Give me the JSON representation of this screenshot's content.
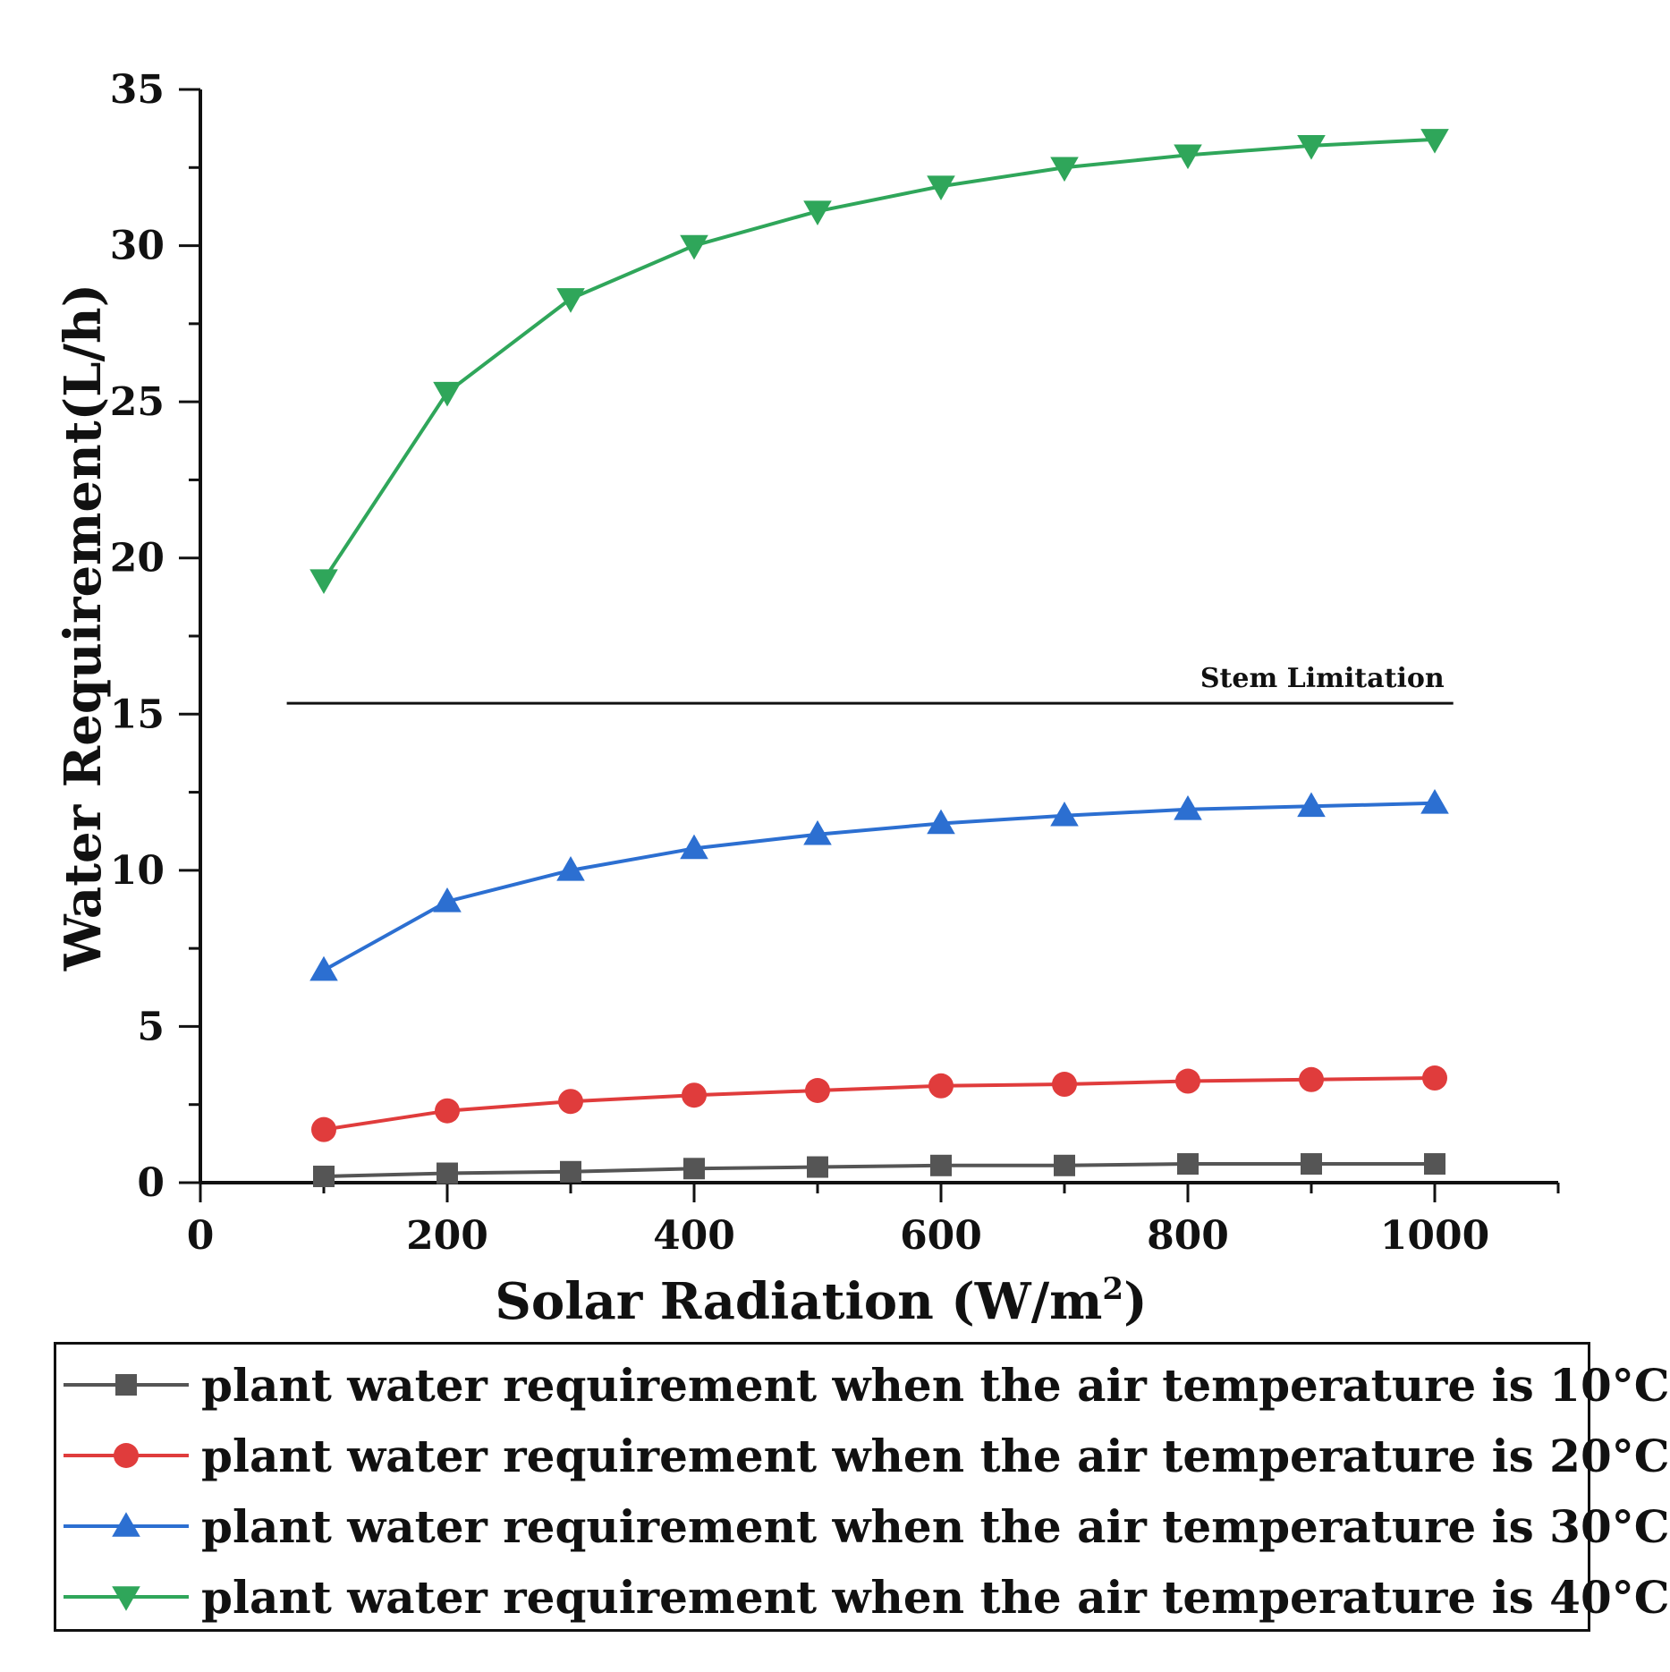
{
  "chart_data": {
    "type": "line",
    "title": "",
    "xlabel": "Solar Radiation (W/m",
    "xlabel_sup": "2",
    "xlabel_tail": ")",
    "ylabel": "Water Requirement(L/h)",
    "xlim": [
      0,
      1100
    ],
    "ylim": [
      0,
      35
    ],
    "xticks": [
      0,
      200,
      400,
      600,
      800,
      1000
    ],
    "yticks": [
      0,
      5,
      10,
      15,
      20,
      25,
      30,
      35
    ],
    "x": [
      100,
      200,
      300,
      400,
      500,
      600,
      700,
      800,
      900,
      1000
    ],
    "series": [
      {
        "name": "plant water requirement when the air temperature is 10°C",
        "color": "#555555",
        "marker": "square",
        "values": [
          0.2,
          0.3,
          0.35,
          0.45,
          0.5,
          0.55,
          0.55,
          0.6,
          0.6,
          0.6
        ]
      },
      {
        "name": "plant water requirement when the air temperature is 20°C",
        "color": "#e03c3c",
        "marker": "circle",
        "values": [
          1.7,
          2.3,
          2.6,
          2.8,
          2.95,
          3.1,
          3.15,
          3.25,
          3.3,
          3.35
        ]
      },
      {
        "name": "plant water requirement when the air temperature is 30°C",
        "color": "#2c6fd1",
        "marker": "triangle-up",
        "values": [
          6.8,
          9.0,
          10.0,
          10.7,
          11.15,
          11.5,
          11.75,
          11.95,
          12.05,
          12.15
        ]
      },
      {
        "name": "plant water requirement when the air temperature is 40°C",
        "color": "#2fa65a",
        "marker": "triangle-down",
        "values": [
          19.3,
          25.3,
          28.3,
          30.0,
          31.1,
          31.9,
          32.5,
          32.9,
          33.2,
          33.4
        ]
      }
    ],
    "reference_line": {
      "label": "Stem Limitation",
      "y": 15.35,
      "x_start": 70,
      "x_end": 1015
    }
  }
}
